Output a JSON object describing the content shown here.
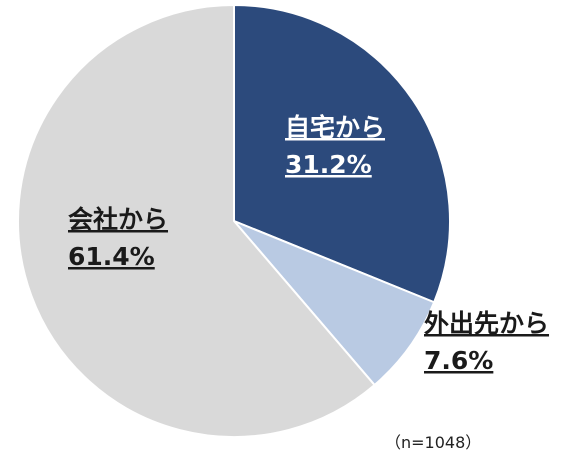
{
  "chart_data": {
    "type": "pie",
    "categories": [
      "自宅から",
      "外出先から",
      "会社から"
    ],
    "values": [
      31.2,
      7.6,
      61.4
    ],
    "value_labels": [
      "31.2%",
      "7.6%",
      "61.4%"
    ],
    "colors": [
      "#2c4a7c",
      "#b9cae3",
      "#d9d9d9"
    ],
    "note": "（n=1048）"
  }
}
